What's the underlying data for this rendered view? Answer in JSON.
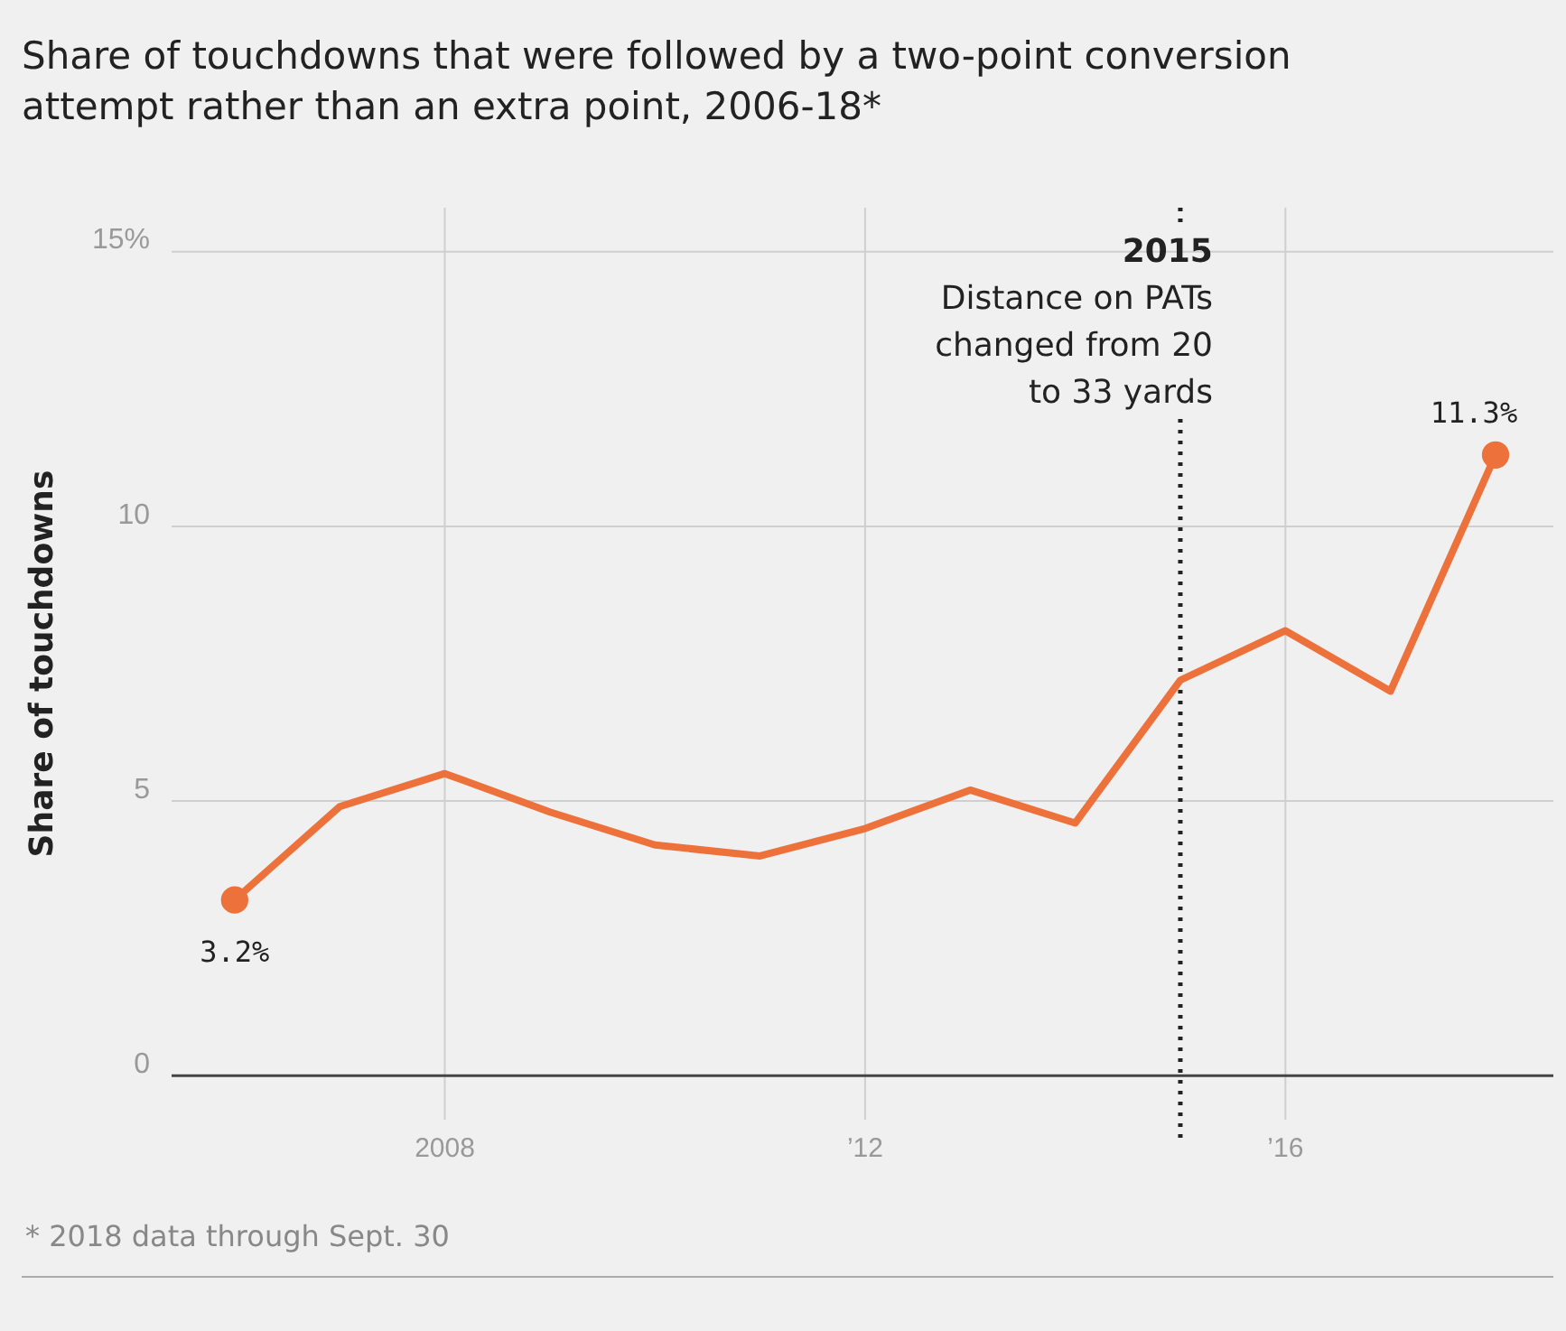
{
  "chart_data": {
    "type": "line",
    "title": "Share of touchdowns that were followed by a two-point conversion attempt rather than an extra point, 2006-18*",
    "ylabel": "Share of touchdowns",
    "xlim": [
      2005.4,
      2018.55
    ],
    "xticks": [
      {
        "value": 2008,
        "label": "2008"
      },
      {
        "value": 2012,
        "label": "’12"
      },
      {
        "value": 2016,
        "label": "’16"
      }
    ],
    "ylim": [
      -0.8,
      15.8
    ],
    "yticks": [
      0,
      5,
      10,
      {
        "value": 15,
        "label": "15%"
      }
    ],
    "grid": true,
    "series": [
      {
        "color": "#ed713a",
        "x": [
          2006,
          2007,
          2008,
          2009,
          2010,
          2011,
          2012,
          2013,
          2014,
          2015,
          2016,
          2017,
          2018
        ],
        "values": [
          3.2,
          4.9,
          5.5,
          4.8,
          4.2,
          4.0,
          4.5,
          5.2,
          4.6,
          7.2,
          8.1,
          7.0,
          11.3
        ]
      },
      {
        "type": "scatter",
        "color": "#ed713a",
        "marker": "circle",
        "x": [
          2006,
          2018
        ],
        "values": [
          3.2,
          11.3
        ],
        "value_labels": [
          "3.2%",
          "11.3%"
        ]
      }
    ],
    "ref_lines": [
      {
        "axis": "x",
        "value": 2015,
        "label": "2015\nDistance on PATs\nchanged from 20\nto 33 yards",
        "color": "#222222",
        "line_style": "dotted"
      }
    ],
    "annotations": [
      "* 2018 data through Sept. 30"
    ]
  }
}
